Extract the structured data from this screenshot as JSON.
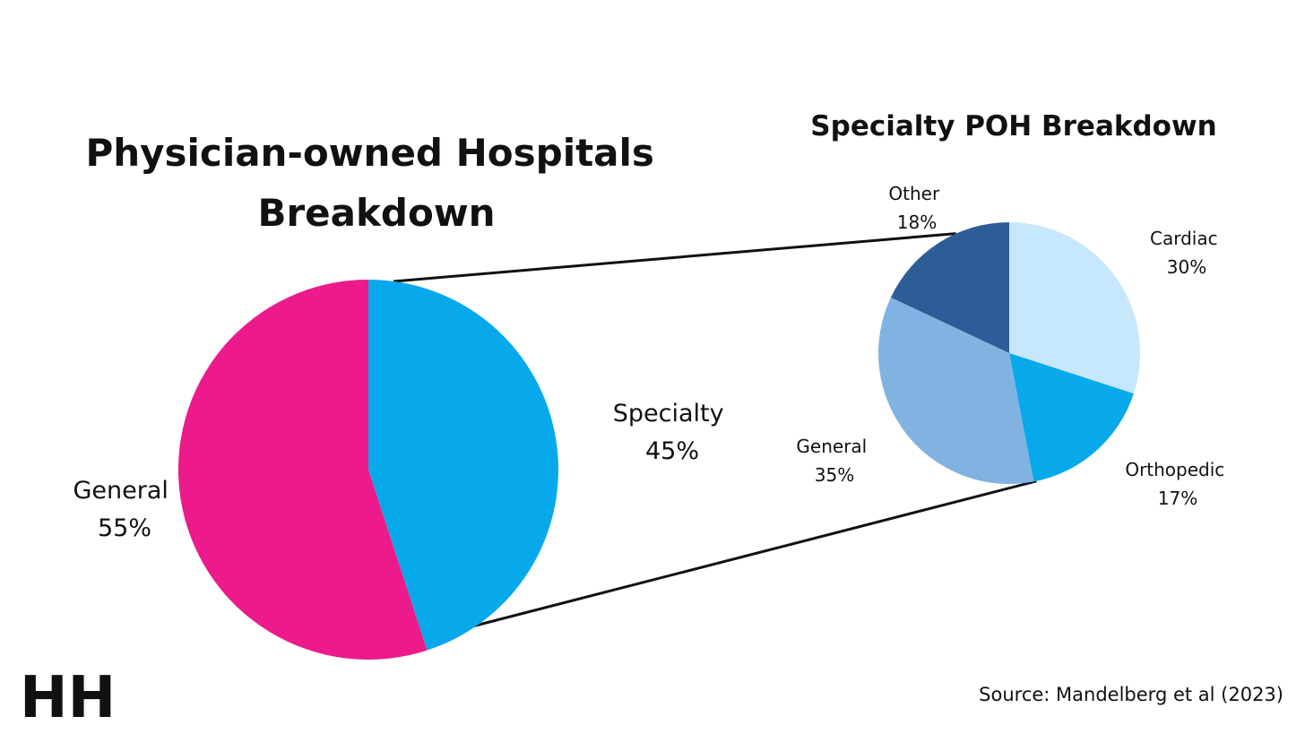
{
  "colors": {
    "general_main": "#EC1A8A",
    "specialty_main": "#08A9EA",
    "sub_cardiac": "#C7E7FD",
    "sub_orthopedic": "#08A9EA",
    "sub_general": "#80B3E1",
    "sub_other": "#2D5D96",
    "connector": "#111111",
    "logo": "#C9E6FA"
  },
  "logo_text": "HH",
  "chart_data": [
    {
      "type": "pie",
      "title": [
        "Physician-owned Hospitals",
        "Breakdown"
      ],
      "start_angle_deg": 0,
      "direction": "clockwise",
      "slices": [
        {
          "name": "Specialty",
          "value": 45,
          "label": "Specialty",
          "pct_label": "45%",
          "color_key": "specialty_main"
        },
        {
          "name": "General",
          "value": 55,
          "label": "General",
          "pct_label": "55%",
          "color_key": "general_main"
        }
      ]
    },
    {
      "type": "pie",
      "title": "Specialty POH Breakdown",
      "start_angle_deg": 0,
      "direction": "clockwise",
      "slices": [
        {
          "name": "Cardiac",
          "value": 30,
          "label": "Cardiac",
          "pct_label": "30%",
          "color_key": "sub_cardiac"
        },
        {
          "name": "Orthopedic",
          "value": 17,
          "label": "Orthopedic",
          "pct_label": "17%",
          "color_key": "sub_orthopedic"
        },
        {
          "name": "General",
          "value": 35,
          "label": "General",
          "pct_label": "35%",
          "color_key": "sub_general"
        },
        {
          "name": "Other",
          "value": 18,
          "label": "Other",
          "pct_label": "18%",
          "color_key": "sub_other"
        }
      ]
    }
  ],
  "source": "Source: Mandelberg et al (2023)"
}
